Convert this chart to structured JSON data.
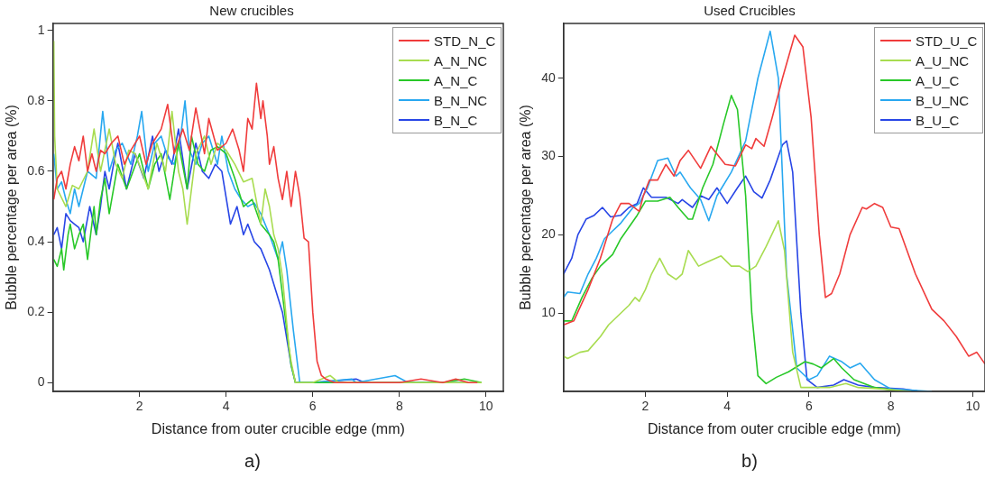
{
  "chart_data": [
    {
      "type": "line",
      "title": "New crucibles",
      "xlabel": "Distance from outer crucible edge (mm)",
      "ylabel": "Bubble percentage per area (%)",
      "xlim": [
        0,
        10.4
      ],
      "xticks": [
        2,
        4,
        6,
        8,
        10
      ],
      "ylim": [
        -0.025,
        1.02
      ],
      "yticks": [
        0,
        0.2,
        0.4,
        0.6,
        0.8,
        1
      ],
      "grid": false,
      "legend": "top right",
      "marker": "none",
      "line_style": "solid",
      "annotations": [
        "a)"
      ],
      "series": [
        {
          "name": "STD_N_C",
          "color": "#f03c3c",
          "x": [
            0.02,
            0.1,
            0.2,
            0.3,
            0.4,
            0.5,
            0.6,
            0.7,
            0.8,
            0.9,
            1.0,
            1.1,
            1.2,
            1.35,
            1.5,
            1.65,
            1.8,
            2.0,
            2.15,
            2.3,
            2.5,
            2.65,
            2.8,
            3.0,
            3.15,
            3.3,
            3.5,
            3.6,
            3.8,
            4.0,
            4.15,
            4.3,
            4.4,
            4.5,
            4.6,
            4.7,
            4.8,
            4.85,
            4.95,
            5.0,
            5.1,
            5.2,
            5.3,
            5.4,
            5.5,
            5.6,
            5.7,
            5.8,
            5.9,
            6.0,
            6.1,
            6.2,
            6.3,
            6.5,
            7.0,
            7.5,
            8.0,
            8.5,
            9.0,
            9.3,
            9.6,
            9.8
          ],
          "values": [
            0.52,
            0.58,
            0.6,
            0.55,
            0.62,
            0.67,
            0.63,
            0.7,
            0.6,
            0.65,
            0.6,
            0.66,
            0.65,
            0.68,
            0.7,
            0.62,
            0.66,
            0.7,
            0.62,
            0.68,
            0.72,
            0.79,
            0.65,
            0.72,
            0.66,
            0.78,
            0.65,
            0.75,
            0.66,
            0.68,
            0.72,
            0.66,
            0.6,
            0.75,
            0.72,
            0.85,
            0.75,
            0.8,
            0.7,
            0.62,
            0.67,
            0.58,
            0.52,
            0.6,
            0.5,
            0.6,
            0.53,
            0.41,
            0.4,
            0.2,
            0.06,
            0.02,
            0.01,
            0,
            0,
            0,
            0,
            0.01,
            0,
            0.01,
            0,
            0
          ]
        },
        {
          "name": "A_N_NC",
          "color": "#a8dc50",
          "x": [
            0.02,
            0.04,
            0.1,
            0.3,
            0.45,
            0.6,
            0.8,
            0.95,
            1.1,
            1.3,
            1.45,
            1.6,
            1.75,
            1.9,
            2.05,
            2.2,
            2.4,
            2.6,
            2.75,
            2.9,
            3.0,
            3.1,
            3.3,
            3.5,
            3.65,
            3.8,
            4.0,
            4.2,
            4.4,
            4.6,
            4.8,
            4.9,
            5.0,
            5.1,
            5.2,
            5.3,
            5.45,
            5.5,
            5.6,
            6.0,
            6.4,
            6.6,
            8.0,
            9.9
          ],
          "values": [
            0.97,
            0.7,
            0.55,
            0.5,
            0.56,
            0.55,
            0.6,
            0.72,
            0.6,
            0.72,
            0.62,
            0.58,
            0.66,
            0.65,
            0.6,
            0.55,
            0.68,
            0.6,
            0.77,
            0.6,
            0.55,
            0.45,
            0.65,
            0.7,
            0.62,
            0.68,
            0.66,
            0.62,
            0.57,
            0.58,
            0.45,
            0.55,
            0.5,
            0.42,
            0.38,
            0.3,
            0.1,
            0.06,
            0,
            0,
            0.02,
            0,
            0,
            0
          ]
        },
        {
          "name": "A_N_C",
          "color": "#28c828",
          "x": [
            0.02,
            0.1,
            0.2,
            0.25,
            0.35,
            0.4,
            0.5,
            0.6,
            0.7,
            0.8,
            0.95,
            1.0,
            1.1,
            1.2,
            1.3,
            1.5,
            1.7,
            1.85,
            2.0,
            2.2,
            2.35,
            2.5,
            2.7,
            2.9,
            3.1,
            3.2,
            3.35,
            3.5,
            3.65,
            3.8,
            4.0,
            4.2,
            4.4,
            4.6,
            4.8,
            5.0,
            5.1,
            5.2,
            5.35,
            5.5,
            5.6,
            6.0,
            7.0,
            8.0,
            9.0,
            9.5,
            9.9
          ],
          "values": [
            0.35,
            0.33,
            0.38,
            0.32,
            0.42,
            0.45,
            0.38,
            0.42,
            0.45,
            0.35,
            0.5,
            0.42,
            0.52,
            0.58,
            0.48,
            0.62,
            0.55,
            0.6,
            0.65,
            0.55,
            0.62,
            0.65,
            0.52,
            0.68,
            0.55,
            0.7,
            0.62,
            0.6,
            0.66,
            0.67,
            0.65,
            0.58,
            0.5,
            0.52,
            0.45,
            0.42,
            0.4,
            0.35,
            0.2,
            0.05,
            0,
            0,
            0,
            0,
            0,
            0.01,
            0
          ]
        },
        {
          "name": "B_N_NC",
          "color": "#28a8f0",
          "x": [
            0.02,
            0.1,
            0.2,
            0.3,
            0.4,
            0.5,
            0.6,
            0.8,
            1.0,
            1.15,
            1.3,
            1.45,
            1.6,
            1.8,
            1.95,
            2.05,
            2.2,
            2.35,
            2.5,
            2.65,
            2.8,
            2.95,
            3.05,
            3.15,
            3.3,
            3.45,
            3.6,
            3.8,
            3.9,
            4.05,
            4.2,
            4.35,
            4.5,
            4.65,
            4.8,
            5.0,
            5.2,
            5.3,
            5.4,
            5.55,
            5.7,
            6.0,
            6.9,
            7.0,
            7.9,
            8.2,
            9.5
          ],
          "values": [
            0.65,
            0.55,
            0.57,
            0.52,
            0.48,
            0.55,
            0.5,
            0.6,
            0.58,
            0.77,
            0.6,
            0.66,
            0.68,
            0.62,
            0.7,
            0.77,
            0.6,
            0.68,
            0.7,
            0.64,
            0.62,
            0.7,
            0.8,
            0.66,
            0.62,
            0.68,
            0.7,
            0.62,
            0.7,
            0.6,
            0.55,
            0.52,
            0.5,
            0.51,
            0.48,
            0.42,
            0.35,
            0.4,
            0.32,
            0.15,
            0,
            0,
            0.01,
            0,
            0.02,
            0,
            0
          ]
        },
        {
          "name": "B_N_C",
          "color": "#2846e6",
          "x": [
            0.02,
            0.1,
            0.2,
            0.3,
            0.4,
            0.5,
            0.6,
            0.7,
            0.85,
            1.0,
            1.1,
            1.2,
            1.3,
            1.4,
            1.5,
            1.7,
            1.9,
            2.1,
            2.3,
            2.45,
            2.6,
            2.75,
            2.9,
            3.1,
            3.3,
            3.45,
            3.6,
            3.75,
            3.9,
            4.1,
            4.25,
            4.4,
            4.5,
            4.65,
            4.8,
            5.0,
            5.1,
            5.3,
            5.5,
            5.6,
            6.0,
            7.0,
            7.2,
            9.0
          ],
          "values": [
            0.42,
            0.44,
            0.38,
            0.48,
            0.46,
            0.45,
            0.44,
            0.4,
            0.5,
            0.42,
            0.5,
            0.6,
            0.55,
            0.62,
            0.68,
            0.55,
            0.65,
            0.58,
            0.7,
            0.6,
            0.66,
            0.62,
            0.72,
            0.55,
            0.68,
            0.6,
            0.58,
            0.62,
            0.6,
            0.45,
            0.5,
            0.42,
            0.45,
            0.4,
            0.38,
            0.32,
            0.28,
            0.2,
            0.05,
            0,
            0,
            0.01,
            0,
            0
          ]
        }
      ]
    },
    {
      "type": "line",
      "title": "Used Crucibles",
      "xlabel": "Distance from outer crucible edge (mm)",
      "ylabel": "Bubble percentage per area (%)",
      "xlim": [
        0,
        10.3
      ],
      "xticks": [
        2,
        4,
        6,
        8,
        10
      ],
      "ylim": [
        0,
        47
      ],
      "yticks": [
        10,
        20,
        30,
        40
      ],
      "grid": false,
      "legend": "top right",
      "marker": "none",
      "line_style": "solid",
      "annotations": [
        "b)"
      ],
      "series": [
        {
          "name": "STD_U_C",
          "color": "#f03c3c",
          "x": [
            0.0,
            0.25,
            0.6,
            0.9,
            1.2,
            1.4,
            1.6,
            1.85,
            1.95,
            2.1,
            2.3,
            2.5,
            2.7,
            2.85,
            3.05,
            3.35,
            3.6,
            3.95,
            4.2,
            4.45,
            4.6,
            4.7,
            4.9,
            5.1,
            5.35,
            5.65,
            5.85,
            6.05,
            6.25,
            6.4,
            6.55,
            6.75,
            7.0,
            7.3,
            7.4,
            7.6,
            7.8,
            8.0,
            8.2,
            8.6,
            9.0,
            9.3,
            9.6,
            9.9,
            10.1,
            10.3
          ],
          "values": [
            8.5,
            9,
            13,
            17,
            22,
            24,
            24,
            23,
            25,
            27,
            27,
            29,
            27.5,
            29.5,
            30.8,
            28.5,
            31.3,
            29,
            28.8,
            31.5,
            31,
            32.3,
            31.3,
            35,
            40,
            45.5,
            44,
            35,
            20,
            12,
            12.5,
            15,
            20,
            23.5,
            23.3,
            24,
            23.5,
            21,
            20.8,
            15,
            10.5,
            9,
            7,
            4.5,
            5,
            3.5
          ]
        },
        {
          "name": "A_U_NC",
          "color": "#a8dc50",
          "x": [
            0.0,
            0.1,
            0.4,
            0.6,
            0.9,
            1.1,
            1.3,
            1.6,
            1.75,
            1.85,
            2.0,
            2.15,
            2.35,
            2.55,
            2.75,
            2.9,
            3.05,
            3.3,
            3.5,
            3.85,
            4.1,
            4.3,
            4.5,
            4.7,
            4.95,
            5.25,
            5.4,
            5.6,
            5.8,
            6.5,
            6.9,
            7.2,
            7.8,
            8.5
          ],
          "values": [
            4.5,
            4.2,
            5,
            5.2,
            7,
            8.5,
            9.5,
            11,
            12,
            11.5,
            13,
            15,
            17,
            15,
            14.3,
            15,
            18,
            16,
            16.5,
            17.3,
            16,
            16,
            15.3,
            16,
            18.5,
            21.8,
            18,
            5,
            0.5,
            0.5,
            1,
            0.5,
            0.3,
            0
          ]
        },
        {
          "name": "A_U_C",
          "color": "#28c828",
          "x": [
            0.0,
            0.2,
            0.45,
            0.7,
            0.9,
            1.2,
            1.4,
            1.6,
            1.8,
            2.0,
            2.3,
            2.6,
            2.8,
            3.05,
            3.15,
            3.4,
            3.65,
            3.9,
            4.1,
            4.25,
            4.45,
            4.6,
            4.75,
            4.95,
            5.2,
            5.5,
            5.9,
            6.1,
            6.3,
            6.6,
            6.8,
            7.1,
            7.6,
            8.3
          ],
          "values": [
            9,
            9,
            12,
            14.5,
            16,
            17.5,
            19.5,
            21,
            22.5,
            24.3,
            24.3,
            24.8,
            23.5,
            22,
            22,
            26,
            29,
            34,
            37.8,
            36,
            25,
            10,
            2,
            1,
            1.8,
            2.5,
            3.8,
            3.5,
            3,
            4.2,
            3,
            1.5,
            0.5,
            0
          ]
        },
        {
          "name": "B_U_NC",
          "color": "#28a8f0",
          "x": [
            0.0,
            0.1,
            0.4,
            0.6,
            0.8,
            1.0,
            1.2,
            1.4,
            1.7,
            1.85,
            2.05,
            2.3,
            2.55,
            2.75,
            2.85,
            3.1,
            3.35,
            3.55,
            3.75,
            4.1,
            4.45,
            4.75,
            5.05,
            5.25,
            5.45,
            5.7,
            6.0,
            6.2,
            6.5,
            6.8,
            7.0,
            7.25,
            7.6,
            8.0,
            9.0
          ],
          "values": [
            12,
            12.7,
            12.5,
            15,
            17,
            19.5,
            20.5,
            21.5,
            23.5,
            24,
            26,
            29.5,
            29.8,
            27.5,
            28,
            26,
            24.5,
            21.8,
            25,
            28,
            32,
            40,
            46,
            40,
            15,
            3,
            1.5,
            2,
            4.5,
            3.8,
            3,
            3.6,
            1.5,
            0.3,
            0
          ]
        },
        {
          "name": "B_U_C",
          "color": "#2846e6",
          "x": [
            0.0,
            0.2,
            0.35,
            0.55,
            0.75,
            0.95,
            1.15,
            1.4,
            1.6,
            1.8,
            1.95,
            2.15,
            2.5,
            2.8,
            2.9,
            3.15,
            3.35,
            3.55,
            3.75,
            4.0,
            4.25,
            4.45,
            4.65,
            4.85,
            5.05,
            5.35,
            5.45,
            5.6,
            5.8,
            5.95,
            6.2,
            6.6,
            6.85,
            7.2,
            7.6,
            8.3,
            8.7
          ],
          "values": [
            15,
            17,
            20,
            22,
            22.5,
            23.5,
            22.3,
            22.5,
            23.5,
            24,
            26,
            24.8,
            24.8,
            24,
            24.5,
            23.5,
            25,
            24.5,
            26,
            24,
            26,
            27.5,
            25.5,
            24.7,
            27,
            31.5,
            32,
            28,
            10,
            1.5,
            0.5,
            0.8,
            1.5,
            0.8,
            0.5,
            0.3,
            0
          ]
        }
      ]
    }
  ]
}
